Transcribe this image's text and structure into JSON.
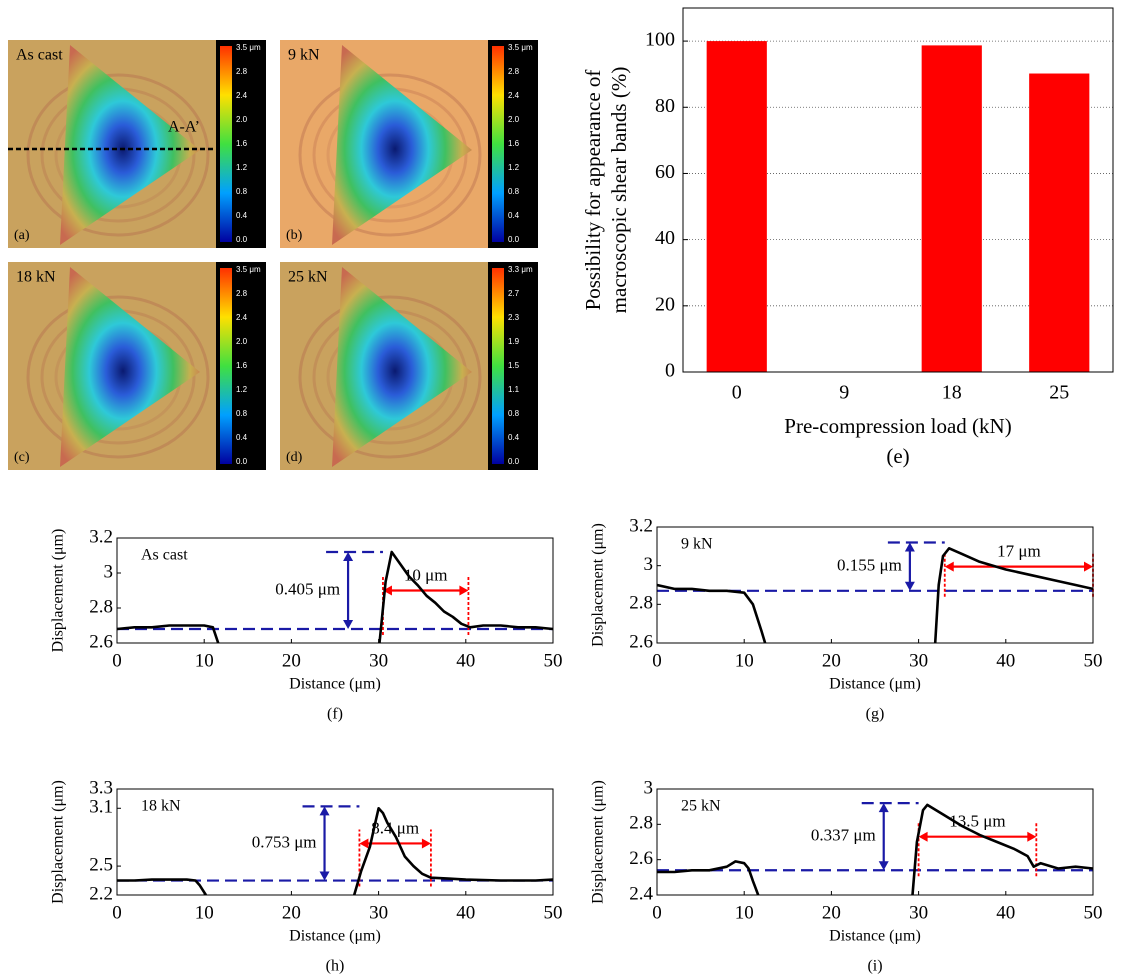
{
  "images": [
    {
      "label": "As cast",
      "panel": "(a)",
      "section": "A-A’",
      "scale": [
        "3.5 μm",
        "2.8",
        "2.4",
        "2.0",
        "1.6",
        "1.2",
        "0.8",
        "0.4",
        "0.0"
      ]
    },
    {
      "label": "9 kN",
      "panel": "(b)",
      "scale": [
        "3.5 μm",
        "2.8",
        "2.4",
        "2.0",
        "1.6",
        "1.2",
        "0.8",
        "0.4",
        "0.0"
      ]
    },
    {
      "label": "18 kN",
      "panel": "(c)",
      "scale": [
        "3.5 μm",
        "2.8",
        "2.4",
        "2.0",
        "1.6",
        "1.2",
        "0.8",
        "0.4",
        "0.0"
      ]
    },
    {
      "label": "25 kN",
      "panel": "(d)",
      "scale": [
        "3.3 μm",
        "2.7",
        "2.3",
        "1.9",
        "1.5",
        "1.1",
        "0.8",
        "0.4",
        "0.0"
      ]
    }
  ],
  "chart_data": [
    {
      "type": "bar",
      "subtitle": "(e)",
      "xlabel": "Pre-compression load (kN)",
      "ylabel": [
        "Possibility for appearance of",
        "macroscopic shear bands (%)"
      ],
      "categories": [
        "0",
        "9",
        "18",
        "25"
      ],
      "values": [
        100,
        0,
        98.7,
        90.2
      ],
      "color": "#ff0000",
      "ylim": [
        0,
        110
      ],
      "yticks": [
        0,
        20,
        40,
        60,
        80,
        100
      ],
      "grid": true
    },
    {
      "type": "line",
      "subtitle": "(f)",
      "label": "As cast",
      "xlabel": "Distance (μm)",
      "ylabel": "Displacement (μm)",
      "xlim": [
        0,
        50
      ],
      "xticks": [
        0,
        10,
        20,
        30,
        40,
        50
      ],
      "ylim": [
        2.6,
        3.2
      ],
      "yticks": [
        2.6,
        2.8,
        3,
        3.2
      ],
      "x": [
        0,
        2,
        4,
        6,
        8,
        10,
        11,
        11.6,
        null,
        30.1,
        30.8,
        31.5,
        32.5,
        33.5,
        34.5,
        35.5,
        36.5,
        37.5,
        38.5,
        39.5,
        40.5,
        42,
        44,
        46,
        48,
        50
      ],
      "values": [
        2.68,
        2.69,
        2.69,
        2.7,
        2.7,
        2.7,
        2.69,
        2.6,
        null,
        2.6,
        2.95,
        3.12,
        3.05,
        2.98,
        2.93,
        2.87,
        2.83,
        2.78,
        2.75,
        2.71,
        2.69,
        2.7,
        2.7,
        2.69,
        2.69,
        2.68
      ],
      "color": "#000000",
      "baseline": 2.68,
      "peak": 3.12,
      "span": [
        30.5,
        40.3
      ],
      "height_label": "0.405 μm",
      "span_label": "10 μm",
      "reference_color": "#1a1aa6",
      "span_color": "#ff0000"
    },
    {
      "type": "line",
      "subtitle": "(g)",
      "label": "9 kN",
      "xlabel": "Distance (μm)",
      "ylabel": "Displacement (μm)",
      "xlim": [
        0,
        50
      ],
      "xticks": [
        0,
        10,
        20,
        30,
        40,
        50
      ],
      "ylim": [
        2.6,
        3.2
      ],
      "yticks": [
        2.6,
        2.8,
        3,
        3.2
      ],
      "x": [
        0,
        2,
        4,
        6,
        8,
        10,
        11,
        12,
        12.4,
        null,
        31.9,
        32.3,
        32.8,
        33.5,
        35,
        37,
        40,
        43,
        46,
        48,
        50
      ],
      "values": [
        2.9,
        2.88,
        2.88,
        2.87,
        2.87,
        2.86,
        2.8,
        2.66,
        2.6,
        null,
        2.6,
        2.9,
        3.05,
        3.09,
        3.06,
        3.02,
        2.98,
        2.95,
        2.92,
        2.9,
        2.88
      ],
      "color": "#000000",
      "baseline": 2.87,
      "peak": 3.12,
      "span": [
        33,
        50
      ],
      "height_label": "0.155 μm",
      "span_label": "17 μm",
      "reference_color": "#1a1aa6",
      "span_color": "#ff0000"
    },
    {
      "type": "line",
      "subtitle": "(h)",
      "label": "18 kN",
      "xlabel": "Distance (μm)",
      "ylabel": "Displacement (μm)",
      "xlim": [
        0,
        50
      ],
      "xticks": [
        0,
        10,
        20,
        30,
        40,
        50
      ],
      "ylim": [
        2.2,
        3.3
      ],
      "yticks": [
        2.2,
        2.5,
        3.1,
        3.3
      ],
      "x": [
        0,
        2,
        4,
        6,
        8,
        9,
        9.5,
        10.2,
        null,
        27.2,
        28,
        29,
        29.5,
        30,
        30.5,
        31,
        32,
        33,
        34,
        35,
        36,
        38,
        40,
        44,
        48,
        50
      ],
      "values": [
        2.35,
        2.35,
        2.36,
        2.36,
        2.36,
        2.35,
        2.3,
        2.2,
        null,
        2.2,
        2.45,
        2.7,
        2.9,
        3.1,
        3.05,
        2.95,
        2.8,
        2.6,
        2.5,
        2.42,
        2.38,
        2.37,
        2.36,
        2.35,
        2.35,
        2.36
      ],
      "color": "#000000",
      "baseline": 2.35,
      "peak": 3.12,
      "span": [
        27.8,
        36
      ],
      "height_label": "0.753 μm",
      "span_label": "8.4 μm",
      "reference_color": "#1a1aa6",
      "span_color": "#ff0000"
    },
    {
      "type": "line",
      "subtitle": "(i)",
      "label": "25 kN",
      "xlabel": "Distance (μm)",
      "ylabel": "Displacement (μm)",
      "xlim": [
        0,
        50
      ],
      "xticks": [
        0,
        10,
        20,
        30,
        40,
        50
      ],
      "ylim": [
        2.4,
        3
      ],
      "yticks": [
        2.4,
        2.6,
        2.8,
        3
      ],
      "x": [
        0,
        2,
        4,
        6,
        8,
        9,
        10,
        10.5,
        11,
        11.6,
        null,
        29.3,
        29.8,
        30.5,
        31,
        33,
        35,
        37,
        39,
        41,
        42.5,
        43.2,
        44,
        46,
        48,
        50
      ],
      "values": [
        2.53,
        2.53,
        2.54,
        2.54,
        2.56,
        2.59,
        2.58,
        2.55,
        2.48,
        2.4,
        null,
        2.4,
        2.7,
        2.88,
        2.91,
        2.85,
        2.79,
        2.74,
        2.7,
        2.66,
        2.62,
        2.56,
        2.58,
        2.55,
        2.56,
        2.55
      ],
      "color": "#000000",
      "baseline": 2.54,
      "peak": 2.92,
      "span": [
        30,
        43.5
      ],
      "height_label": "0.337 μm",
      "span_label": "13.5 μm",
      "reference_color": "#1a1aa6",
      "span_color": "#ff0000"
    }
  ]
}
